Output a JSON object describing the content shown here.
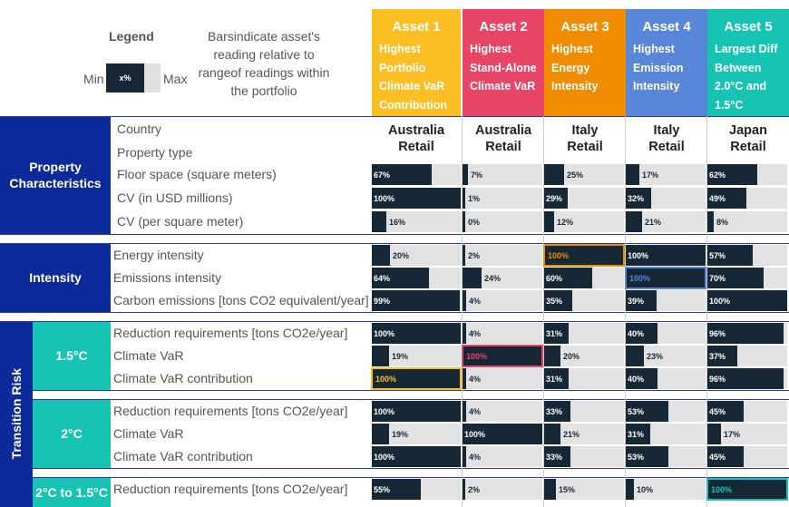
{
  "legend": {
    "title": "Legend",
    "description": "Barsindicate asset's reading relative to rangeof readings within the portfolio",
    "min": "Min",
    "max": "Max",
    "sample": "x%"
  },
  "assets": [
    {
      "name": "Asset 1",
      "desc": "Highest Portfolio Climate VaR Contribution",
      "color": "#fbbf24",
      "country": "Australia",
      "type": "Retail"
    },
    {
      "name": "Asset 2",
      "desc": "Highest Stand-Alone Climate VaR",
      "color": "#e84566",
      "country": "Australia",
      "type": "Retail"
    },
    {
      "name": "Asset 3",
      "desc": "Highest Energy Intensity",
      "color": "#f08c00",
      "country": "Italy",
      "type": "Retail"
    },
    {
      "name": "Asset 4",
      "desc": "Highest Emission Intensity",
      "color": "#5887da",
      "country": "Italy",
      "type": "Retail"
    },
    {
      "name": "Asset 5",
      "desc": "Largest Diff Between 2.0°C and 1.5°C",
      "color": "#17c3b2",
      "country": "Japan",
      "type": "Retail"
    }
  ],
  "groups": {
    "property": "Property Characteristics",
    "intensity": "Intensity",
    "transition": "Transition Risk",
    "s15": "1.5°C",
    "s20": "2°C",
    "sdiff": "2°C to 1.5°C"
  },
  "labels": {
    "country": "Country",
    "property_type": "Property type"
  },
  "chart_data": {
    "type": "table",
    "columns": [
      "Asset 1",
      "Asset 2",
      "Asset 3",
      "Asset 4",
      "Asset 5"
    ],
    "rows": [
      {
        "label": "Floor space (square meters)",
        "values": [
          67,
          7,
          25,
          17,
          62
        ],
        "labels": [
          "67%",
          "7%",
          "25%",
          "17%",
          "62%"
        ],
        "highlight": null
      },
      {
        "label": "CV (in USD millions)",
        "values": [
          100,
          1,
          29,
          32,
          49
        ],
        "labels": [
          "100%",
          "1%",
          "29%",
          "32%",
          "49%"
        ],
        "highlight": null
      },
      {
        "label": "CV (per square meter)",
        "values": [
          16,
          0,
          12,
          21,
          8
        ],
        "labels": [
          "16%",
          "0%",
          "12%",
          "21%",
          "8%"
        ],
        "highlight": null
      },
      {
        "label": "Energy intensity",
        "values": [
          20,
          2,
          100,
          100,
          57
        ],
        "labels": [
          "20%",
          "2%",
          "100%",
          "100%",
          "57%"
        ],
        "highlight": 2
      },
      {
        "label": "Emissions intensity",
        "values": [
          64,
          24,
          60,
          100,
          70
        ],
        "labels": [
          "64%",
          "24%",
          "60%",
          "100%",
          "70%"
        ],
        "highlight": 3
      },
      {
        "label": "Carbon emissions [tons CO2 equivalent/year]",
        "values": [
          99,
          4,
          35,
          39,
          100
        ],
        "labels": [
          "99%",
          "4%",
          "35%",
          "39%",
          "100%"
        ],
        "highlight": null
      },
      {
        "label": "Reduction requirements  [tons CO2e/year]",
        "values": [
          100,
          4,
          31,
          40,
          96
        ],
        "labels": [
          "100%",
          "4%",
          "31%",
          "40%",
          "96%"
        ],
        "highlight": null
      },
      {
        "label": "Climate VaR",
        "values": [
          19,
          100,
          20,
          23,
          37
        ],
        "labels": [
          "19%",
          "100%",
          "20%",
          "23%",
          "37%"
        ],
        "highlight": 1
      },
      {
        "label": "Climate VaR contribution",
        "values": [
          100,
          4,
          31,
          40,
          96
        ],
        "labels": [
          "100%",
          "4%",
          "31%",
          "40%",
          "96%"
        ],
        "highlight": 0
      },
      {
        "label": "Reduction requirements  [tons CO2e/year]",
        "values": [
          100,
          4,
          33,
          53,
          45
        ],
        "labels": [
          "100%",
          "4%",
          "33%",
          "53%",
          "45%"
        ],
        "highlight": null
      },
      {
        "label": "Climate VaR",
        "values": [
          19,
          100,
          21,
          31,
          17
        ],
        "labels": [
          "19%",
          "100%",
          "21%",
          "31%",
          "17%"
        ],
        "highlight": null
      },
      {
        "label": "Climate VaR contribution",
        "values": [
          100,
          4,
          33,
          53,
          45
        ],
        "labels": [
          "100%",
          "4%",
          "33%",
          "53%",
          "45%"
        ],
        "highlight": null
      },
      {
        "label": "Reduction requirements  [tons CO2e/year]",
        "values": [
          55,
          2,
          15,
          10,
          100
        ],
        "labels": [
          "55%",
          "2%",
          "15%",
          "10%",
          "100%"
        ],
        "highlight": 4
      }
    ]
  }
}
